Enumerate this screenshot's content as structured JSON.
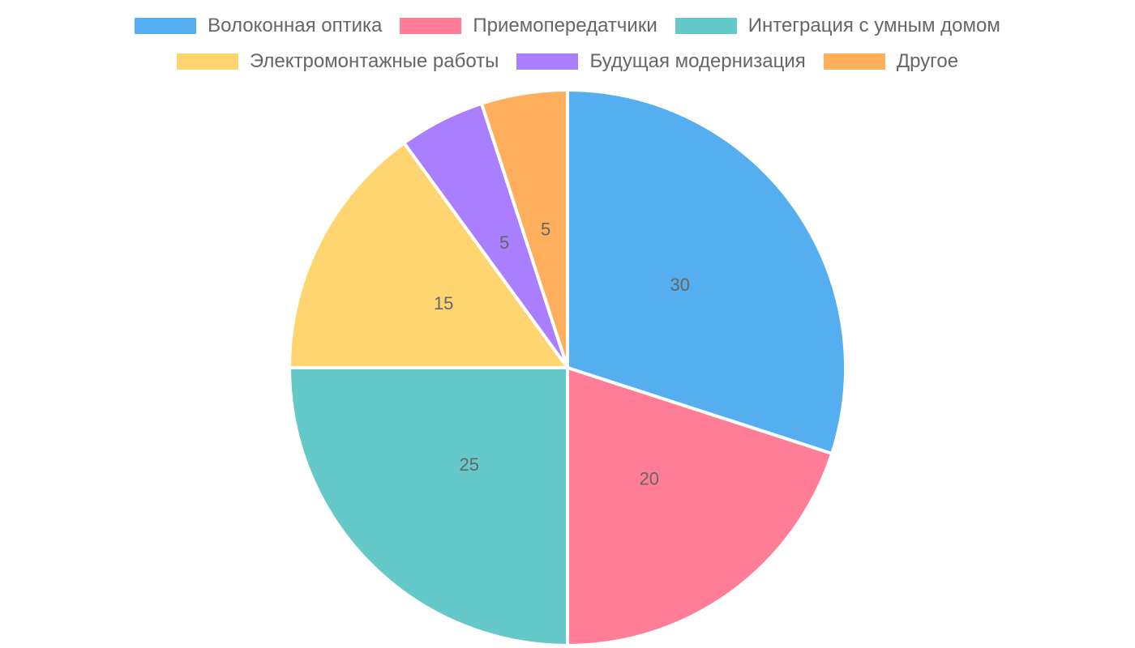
{
  "chart_data": {
    "type": "pie",
    "legend_position": "top",
    "slices": [
      {
        "label": "Волоконная оптика",
        "value": 30,
        "color": "#55aeef"
      },
      {
        "label": "Приемопередатчики",
        "value": 20,
        "color": "#ff7d96"
      },
      {
        "label": "Интеграция с умным домом",
        "value": 25,
        "color": "#66c9c9"
      },
      {
        "label": "Электромонтажные работы",
        "value": 15,
        "color": "#ffd572"
      },
      {
        "label": "Будущая модернизация",
        "value": 5,
        "color": "#a97fff"
      },
      {
        "label": "Другое",
        "value": 5,
        "color": "#ffae5c"
      }
    ]
  }
}
